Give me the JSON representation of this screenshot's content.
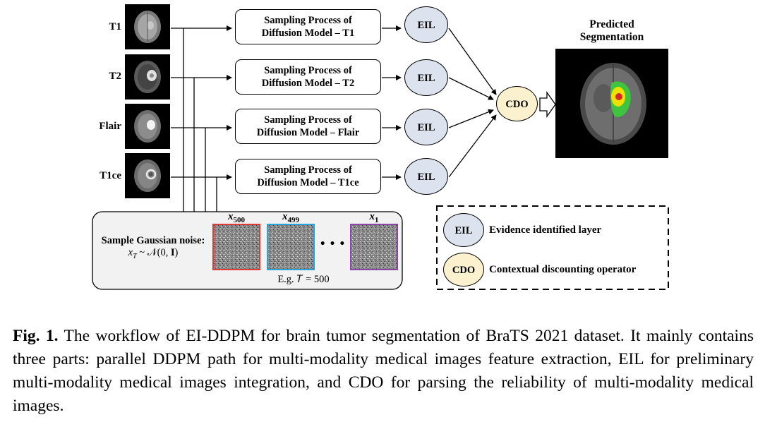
{
  "figure": {
    "modalities": [
      "T1",
      "T2",
      "Flair",
      "T1ce"
    ],
    "sampling_boxes": [
      {
        "line1": "Sampling Process of",
        "line2": "Diffusion Model – T1"
      },
      {
        "line1": "Sampling Process of",
        "line2": "Diffusion Model – T2"
      },
      {
        "line1": "Sampling Process of",
        "line2": "Diffusion Model – Flair"
      },
      {
        "line1": "Sampling Process of",
        "line2": "Diffusion Model – T1ce"
      }
    ],
    "eil_label": "EIL",
    "cdo_label": "CDO",
    "predicted_title_line1": "Predicted",
    "predicted_title_line2": "Segmentation",
    "noise_label_line1": "Sample Gaussian noise:",
    "noise_label_line2": "x",
    "noise_label_sub": "T",
    "noise_label_rest": " ~ 𝒩(0, 𝐈)",
    "noise_tiles": [
      {
        "label": "x",
        "sub": "500",
        "border": "#e53935"
      },
      {
        "label": "x",
        "sub": "499",
        "border": "#29a3dd"
      },
      {
        "label": "x",
        "sub": "1",
        "border": "#8e44ad"
      }
    ],
    "ellipsis": "• • •",
    "example_text": "E.g. 𝑇 = 500",
    "legend": [
      {
        "symbol": "EIL",
        "text": "Evidence identified layer",
        "fill": "#dde3ee"
      },
      {
        "symbol": "CDO",
        "text": "Contextual discounting operator",
        "fill": "#fbf1cf"
      }
    ]
  },
  "caption": {
    "label": "Fig. 1.",
    "text": " The workflow of EI-DDPM for brain tumor segmentation of BraTS 2021 dataset. It mainly contains three parts: parallel DDPM path for multi-modality medical images feature extraction, EIL for preliminary multi-modality medical images integration, and CDO for parsing the reliability of multi-modality medical images."
  }
}
